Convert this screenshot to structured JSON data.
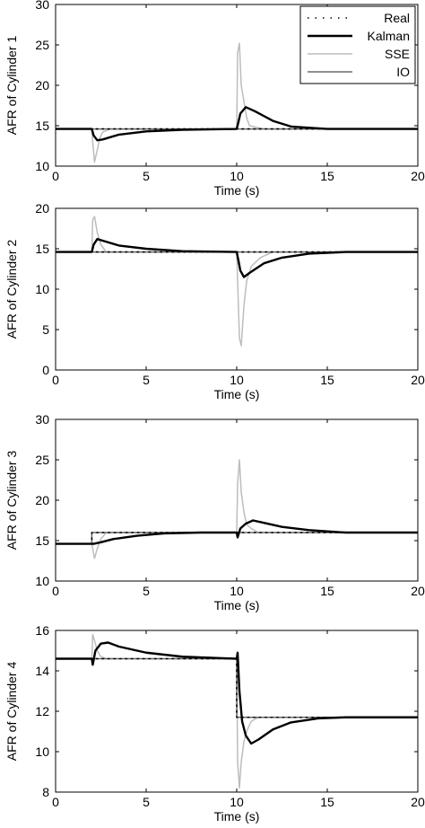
{
  "chart_data": [
    {
      "type": "line",
      "xlabel": "Time (s)",
      "ylabel": "AFR of Cylinder 1",
      "xlim": [
        0,
        20
      ],
      "ylim": [
        10,
        30
      ],
      "xticks": [
        0,
        5,
        10,
        15,
        20
      ],
      "yticks": [
        10,
        15,
        20,
        25,
        30
      ],
      "xtick_labels": [
        "0",
        "5",
        "10",
        "15",
        "20"
      ],
      "ytick_labels": [
        "10",
        "15",
        "20",
        "25",
        "30"
      ],
      "legend": {
        "position": "top-right",
        "entries": [
          "Real",
          "Kalman",
          "SSE",
          "IO"
        ]
      },
      "series": [
        {
          "name": "Real",
          "style": "dotted",
          "color": "#000000",
          "x": [
            0,
            2,
            2.1,
            20
          ],
          "y": [
            14.6,
            14.6,
            14.6,
            14.6
          ]
        },
        {
          "name": "Kalman",
          "style": "solid",
          "color": "#000000",
          "x": [
            0,
            2.0,
            2.1,
            2.3,
            2.6,
            3.5,
            5,
            7,
            10.0,
            10.1,
            10.2,
            10.5,
            11,
            12,
            13,
            15,
            20
          ],
          "y": [
            14.6,
            14.6,
            13.8,
            13.2,
            13.3,
            13.9,
            14.3,
            14.5,
            14.6,
            15.5,
            16.5,
            17.3,
            16.8,
            15.6,
            14.9,
            14.6,
            14.6
          ]
        },
        {
          "name": "SSE",
          "style": "solid",
          "color": "#bdbdbd",
          "x": [
            0,
            2.0,
            2.05,
            2.15,
            2.3,
            2.45,
            2.6,
            3.0,
            10.0,
            10.05,
            10.15,
            10.25,
            10.4,
            10.55,
            10.7,
            11.5,
            20
          ],
          "y": [
            14.6,
            14.6,
            13.0,
            10.5,
            12.0,
            13.5,
            14.2,
            14.6,
            14.6,
            24.0,
            25.2,
            20.0,
            18.0,
            16.0,
            15.0,
            14.6,
            14.6
          ]
        },
        {
          "name": "IO",
          "style": "solid",
          "color": "#6a6a6a",
          "x": [
            0,
            20
          ],
          "y": [
            14.6,
            14.6
          ]
        }
      ]
    },
    {
      "type": "line",
      "xlabel": "Time (s)",
      "ylabel": "AFR of Cylinder 2",
      "xlim": [
        0,
        20
      ],
      "ylim": [
        0,
        20
      ],
      "xticks": [
        0,
        5,
        10,
        15,
        20
      ],
      "yticks": [
        0,
        5,
        10,
        15,
        20
      ],
      "xtick_labels": [
        "0",
        "5",
        "10",
        "15",
        "20"
      ],
      "ytick_labels": [
        "0",
        "5",
        "10",
        "15",
        "20"
      ],
      "series": [
        {
          "name": "Real",
          "style": "dotted",
          "color": "#000000",
          "x": [
            0,
            20
          ],
          "y": [
            14.6,
            14.6
          ]
        },
        {
          "name": "Kalman",
          "style": "solid",
          "color": "#000000",
          "x": [
            0,
            2.0,
            2.1,
            2.3,
            2.6,
            3.5,
            5,
            7,
            10.0,
            10.1,
            10.2,
            10.4,
            10.7,
            11.5,
            12.5,
            14,
            16,
            20
          ],
          "y": [
            14.6,
            14.6,
            15.5,
            16.2,
            16.0,
            15.4,
            15.0,
            14.7,
            14.6,
            13.5,
            12.3,
            11.5,
            12.0,
            13.2,
            13.9,
            14.4,
            14.6,
            14.6
          ]
        },
        {
          "name": "SSE",
          "style": "solid",
          "color": "#bdbdbd",
          "x": [
            0,
            2.0,
            2.05,
            2.15,
            2.3,
            2.5,
            2.8,
            10.0,
            10.05,
            10.15,
            10.25,
            10.4,
            10.55,
            10.8,
            11.3,
            12,
            20
          ],
          "y": [
            14.6,
            14.6,
            18.6,
            19.0,
            17.0,
            15.5,
            14.6,
            14.6,
            11.0,
            4.0,
            3.0,
            8.0,
            11.0,
            12.8,
            13.9,
            14.6,
            14.6
          ]
        },
        {
          "name": "IO",
          "style": "solid",
          "color": "#6a6a6a",
          "x": [
            0,
            20
          ],
          "y": [
            14.6,
            14.6
          ]
        }
      ]
    },
    {
      "type": "line",
      "xlabel": "Time (s)",
      "ylabel": "AFR of Cylinder 3",
      "xlim": [
        0,
        20
      ],
      "ylim": [
        10,
        30
      ],
      "xticks": [
        0,
        5,
        10,
        15,
        20
      ],
      "yticks": [
        10,
        15,
        20,
        25,
        30
      ],
      "xtick_labels": [
        "0",
        "5",
        "10",
        "15",
        "20"
      ],
      "ytick_labels": [
        "10",
        "15",
        "20",
        "25",
        "30"
      ],
      "series": [
        {
          "name": "Real",
          "style": "dotted",
          "color": "#000000",
          "x": [
            0,
            2.0,
            2.0,
            20
          ],
          "y": [
            14.6,
            14.6,
            16.0,
            16.0
          ]
        },
        {
          "name": "Kalman",
          "style": "solid",
          "color": "#000000",
          "x": [
            0,
            2.0,
            2.1,
            2.5,
            3.2,
            4.5,
            6,
            8,
            10.0,
            10.05,
            10.2,
            10.5,
            10.9,
            11.5,
            12.5,
            14,
            16,
            20
          ],
          "y": [
            14.6,
            14.6,
            14.6,
            14.8,
            15.2,
            15.6,
            15.9,
            16.0,
            16.0,
            15.4,
            16.5,
            17.1,
            17.5,
            17.2,
            16.7,
            16.3,
            16.0,
            16.0
          ]
        },
        {
          "name": "SSE",
          "style": "solid",
          "color": "#bdbdbd",
          "x": [
            0,
            2.0,
            2.05,
            2.15,
            2.3,
            2.5,
            2.8,
            10.0,
            10.05,
            10.15,
            10.25,
            10.4,
            10.55,
            10.8,
            11.2,
            20
          ],
          "y": [
            14.6,
            14.6,
            14.0,
            12.8,
            14.0,
            15.2,
            16.0,
            16.0,
            22.0,
            25.0,
            21.0,
            18.5,
            17.0,
            16.5,
            16.0,
            16.0
          ]
        },
        {
          "name": "IO",
          "style": "solid",
          "color": "#6a6a6a",
          "x": [
            0,
            2.0,
            2.0,
            20
          ],
          "y": [
            14.6,
            14.6,
            16.0,
            16.0
          ]
        }
      ]
    },
    {
      "type": "line",
      "xlabel": "Time (s)",
      "ylabel": "AFR of Cylinder 4",
      "xlim": [
        0,
        20
      ],
      "ylim": [
        8,
        16
      ],
      "xticks": [
        0,
        5,
        10,
        15,
        20
      ],
      "yticks": [
        8,
        10,
        12,
        14,
        16
      ],
      "xtick_labels": [
        "0",
        "5",
        "10",
        "15",
        "20"
      ],
      "ytick_labels": [
        "8",
        "10",
        "12",
        "14",
        "16"
      ],
      "series": [
        {
          "name": "Real",
          "style": "dotted",
          "color": "#000000",
          "x": [
            0,
            10.0,
            10.0,
            20
          ],
          "y": [
            14.6,
            14.6,
            11.7,
            11.7
          ]
        },
        {
          "name": "Kalman",
          "style": "solid",
          "color": "#000000",
          "x": [
            0,
            2.0,
            2.05,
            2.2,
            2.5,
            2.9,
            3.5,
            5,
            7,
            10.0,
            10.05,
            10.15,
            10.3,
            10.5,
            10.8,
            11.2,
            12,
            13,
            14.5,
            16,
            20
          ],
          "y": [
            14.6,
            14.6,
            14.3,
            15.0,
            15.35,
            15.4,
            15.2,
            14.9,
            14.7,
            14.6,
            14.9,
            13.0,
            11.5,
            10.8,
            10.4,
            10.6,
            11.1,
            11.45,
            11.65,
            11.7,
            11.7
          ]
        },
        {
          "name": "SSE",
          "style": "solid",
          "color": "#bdbdbd",
          "x": [
            0,
            2.0,
            2.05,
            2.15,
            2.3,
            2.5,
            2.8,
            10.0,
            10.05,
            10.15,
            10.25,
            10.4,
            10.55,
            10.8,
            11.2,
            20
          ],
          "y": [
            14.6,
            14.6,
            15.8,
            15.5,
            15.0,
            14.7,
            14.6,
            14.6,
            9.5,
            8.2,
            9.5,
            10.5,
            11.0,
            11.5,
            11.7,
            11.7
          ]
        },
        {
          "name": "IO",
          "style": "solid",
          "color": "#6a6a6a",
          "x": [
            0,
            10.0,
            10.0,
            20
          ],
          "y": [
            14.6,
            14.6,
            11.7,
            11.7
          ]
        }
      ]
    }
  ]
}
